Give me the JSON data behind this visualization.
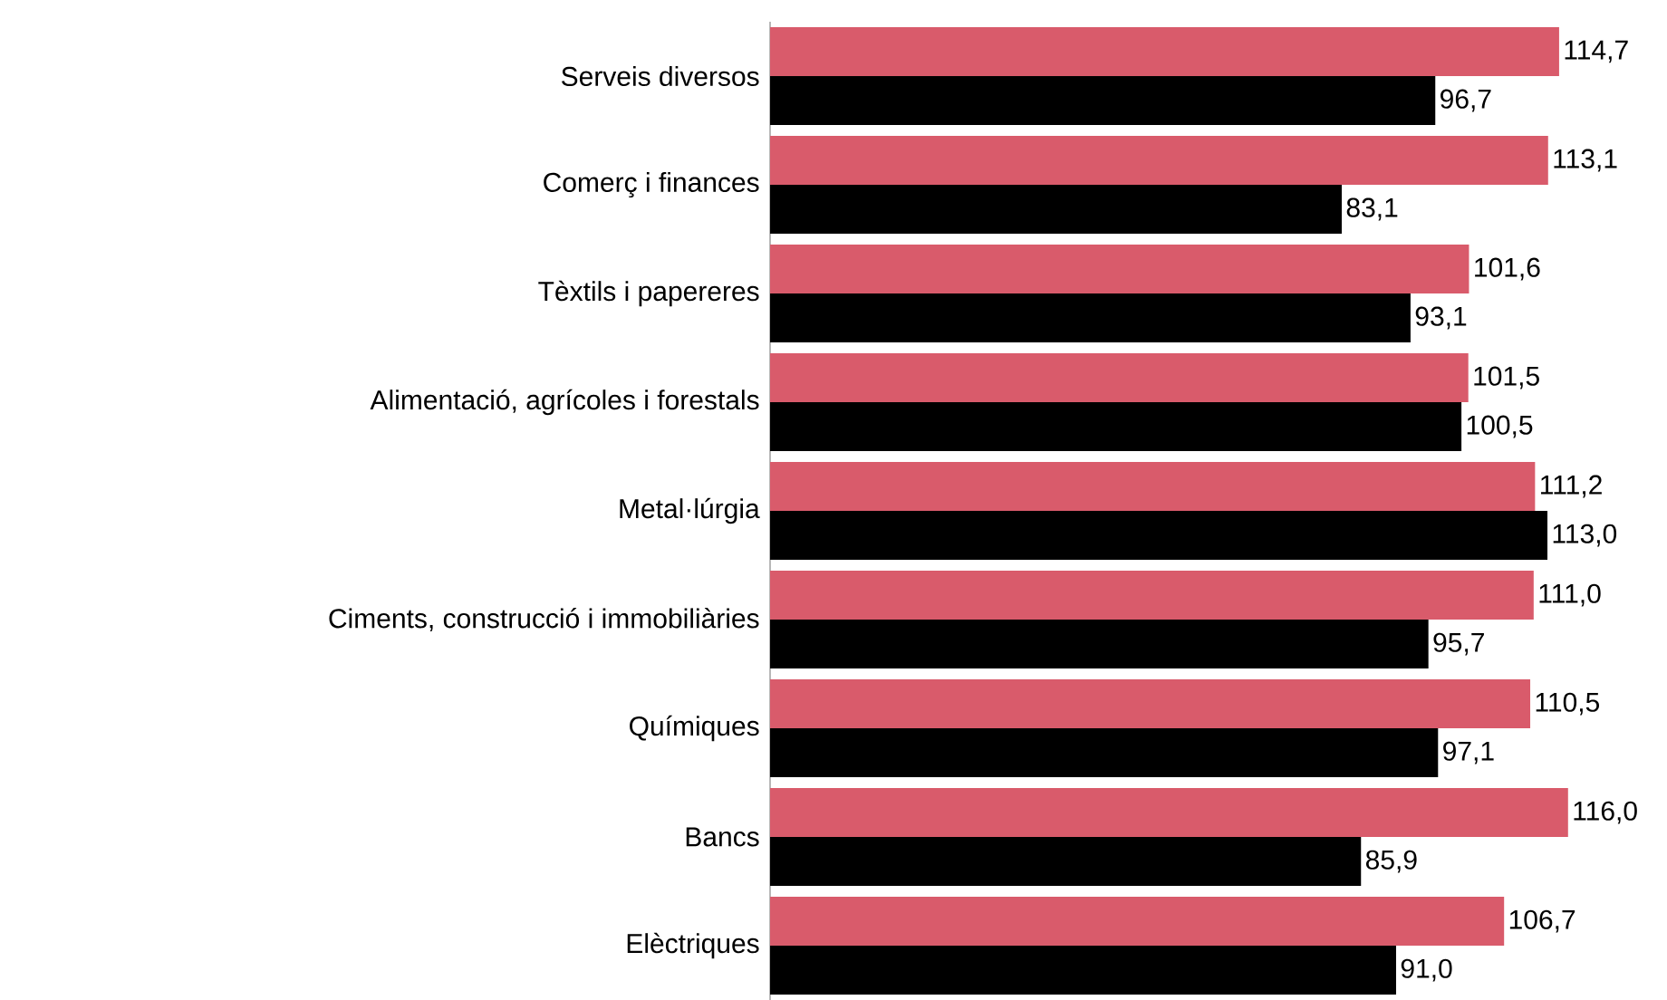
{
  "chart_data": {
    "type": "bar",
    "orientation": "horizontal",
    "categories": [
      "Serveis diversos",
      "Comerç i finances",
      "Tèxtils i papereres",
      "Alimentació, agrícoles i forestals",
      "Metal·lúrgia",
      "Ciments, construcció i immobiliàries",
      "Químiques",
      "Bancs",
      "Elèctriques"
    ],
    "series": [
      {
        "color": "#d95b6b",
        "values": [
          114.7,
          113.1,
          101.6,
          101.5,
          111.2,
          111.0,
          110.5,
          116.0,
          106.7
        ],
        "value_labels": [
          "114,7",
          "113,1",
          "101,6",
          "101,5",
          "111,2",
          "111,0",
          "110,5",
          "116,0",
          "106,7"
        ]
      },
      {
        "color": "#000000",
        "values": [
          96.7,
          83.1,
          93.1,
          100.5,
          113.0,
          95.7,
          97.1,
          85.9,
          91.0
        ],
        "value_labels": [
          "96,7",
          "83,1",
          "93,1",
          "100,5",
          "113,0",
          "95,7",
          "97,1",
          "85,9",
          "91,0"
        ]
      }
    ]
  }
}
